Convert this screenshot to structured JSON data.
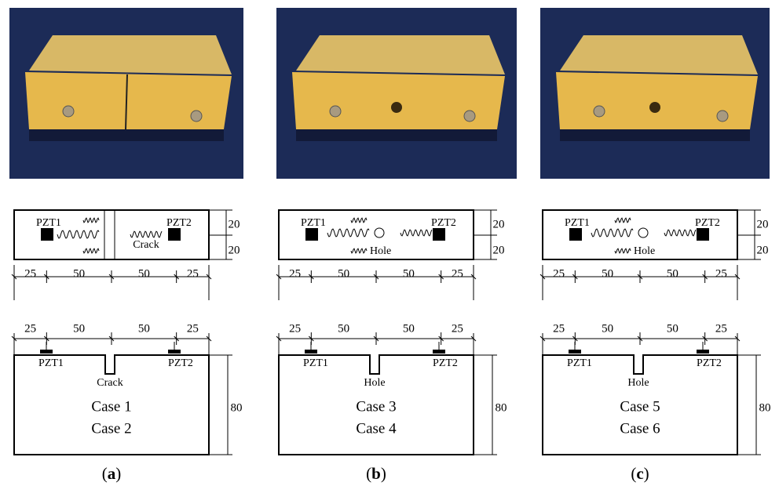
{
  "panels": [
    {
      "caption": {
        "open": "(",
        "letter": "a",
        "close": ")"
      },
      "top_view": {
        "sensor_left": "PZT1",
        "sensor_right": "PZT2",
        "defect": "Crack",
        "widths": [
          25,
          50,
          50,
          25
        ],
        "heights": [
          20,
          20
        ]
      },
      "side_view": {
        "widths": [
          25,
          50,
          50,
          25
        ],
        "sensor_left": "PZT1",
        "sensor_right": "PZT2",
        "defect": "Crack",
        "cases": [
          "Case 1",
          "Case 2"
        ],
        "height": 80
      }
    },
    {
      "caption": {
        "open": "(",
        "letter": "b",
        "close": ")"
      },
      "top_view": {
        "sensor_left": "PZT1",
        "sensor_right": "PZT2",
        "defect": "Hole",
        "widths": [
          25,
          50,
          50,
          25
        ],
        "heights": [
          20,
          20
        ]
      },
      "side_view": {
        "widths": [
          25,
          50,
          50,
          25
        ],
        "sensor_left": "PZT1",
        "sensor_right": "PZT2",
        "defect": "Hole",
        "cases": [
          "Case 3",
          "Case 4"
        ],
        "height": 80
      }
    },
    {
      "caption": {
        "open": "(",
        "letter": "c",
        "close": ")"
      },
      "top_view": {
        "sensor_left": "PZT1",
        "sensor_right": "PZT2",
        "defect": "Hole",
        "widths": [
          25,
          50,
          50,
          25
        ],
        "heights": [
          20,
          20
        ]
      },
      "side_view": {
        "widths": [
          25,
          50,
          50,
          25
        ],
        "sensor_left": "PZT1",
        "sensor_right": "PZT2",
        "defect": "Hole",
        "cases": [
          "Case 5",
          "Case 6"
        ],
        "height": 80
      }
    }
  ]
}
